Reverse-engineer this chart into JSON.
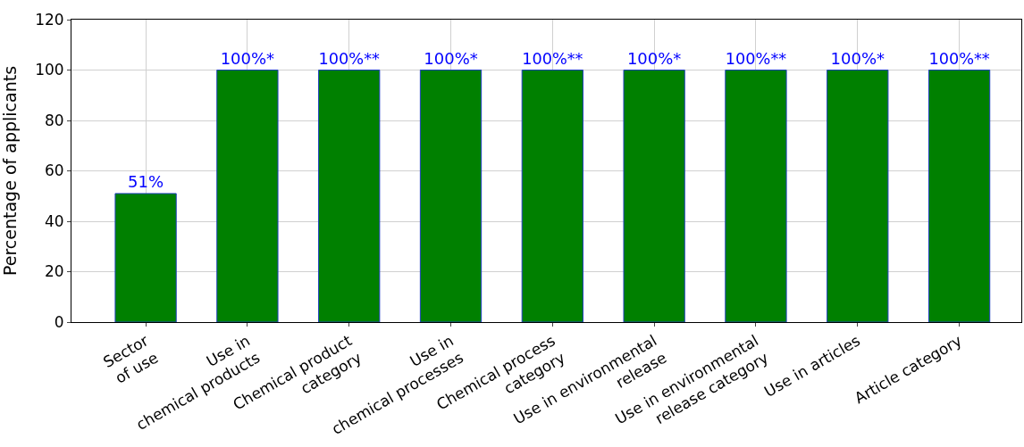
{
  "chart_data": {
    "type": "bar",
    "ylabel": "Percentage of applicants",
    "categories": [
      "Sector\nof use",
      "Use in\nchemical products",
      "Chemical product\ncategory",
      "Use in\nchemical processes",
      "Chemical process\ncategory",
      "Use in environmental\nrelease",
      "Use in environmental\nrelease category",
      "Use in articles",
      "Article category"
    ],
    "values": [
      51,
      100,
      100,
      100,
      100,
      100,
      100,
      100,
      100
    ],
    "value_labels": [
      "51%",
      "100%*",
      "100%**",
      "100%*",
      "100%**",
      "100%*",
      "100%**",
      "100%*",
      "100%**"
    ],
    "color": "#008000",
    "ylim": [
      0,
      120
    ],
    "yticks": [
      0,
      20,
      40,
      60,
      80,
      100,
      120
    ],
    "grid": true
  }
}
